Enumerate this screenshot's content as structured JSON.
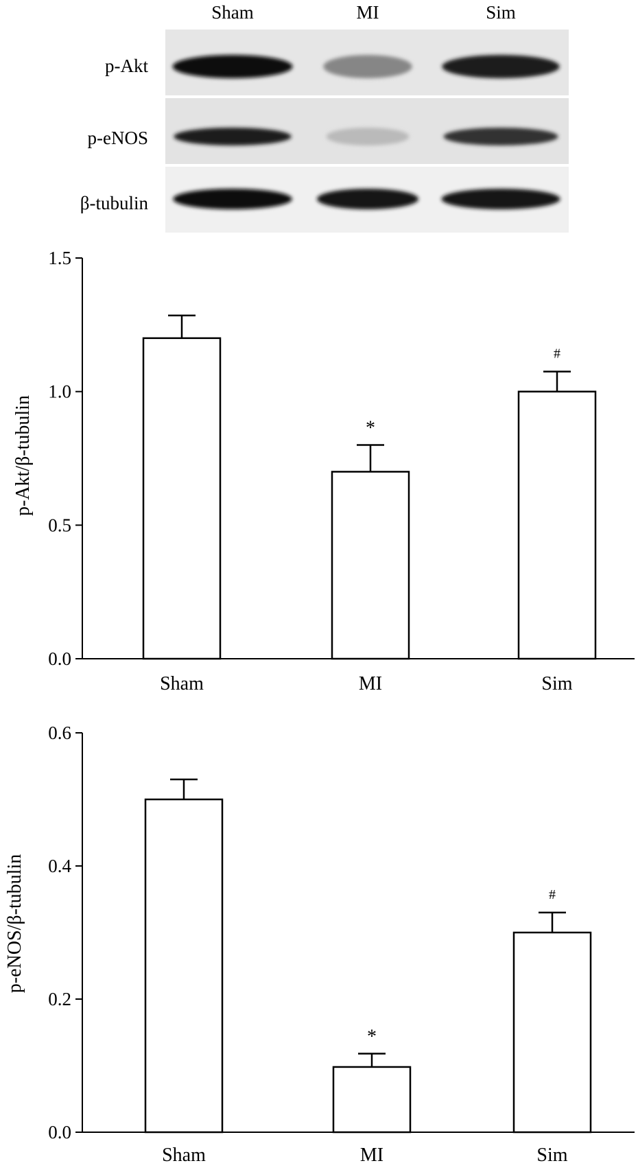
{
  "blot": {
    "lanes": [
      "Sham",
      "MI",
      "Sim"
    ],
    "rows": [
      {
        "label": "p-Akt",
        "intensity": [
          1.0,
          0.45,
          0.92
        ]
      },
      {
        "label": "p-eNOS",
        "intensity": [
          0.92,
          0.22,
          0.82
        ]
      },
      {
        "label": "β-tubulin",
        "intensity": [
          0.97,
          0.95,
          0.96
        ]
      }
    ]
  },
  "chart_data": [
    {
      "type": "bar",
      "title": "",
      "xlabel": "",
      "ylabel": "p-Akt/β-tubulin",
      "categories": [
        "Sham",
        "MI",
        "Sim"
      ],
      "values": [
        1.2,
        0.7,
        1.0
      ],
      "errors": [
        0.085,
        0.1,
        0.075
      ],
      "annotations": [
        "",
        "*",
        "#"
      ],
      "ylim": [
        0.0,
        1.5
      ],
      "yticks": [
        0.0,
        0.5,
        1.0,
        1.5
      ],
      "ytick_labels": [
        "0.0",
        "0.5",
        "1.0",
        "1.5"
      ],
      "grid": false
    },
    {
      "type": "bar",
      "title": "",
      "xlabel": "",
      "ylabel": "p-eNOS/β-tubulin",
      "categories": [
        "Sham",
        "MI",
        "Sim"
      ],
      "values": [
        0.5,
        0.098,
        0.3
      ],
      "errors": [
        0.03,
        0.02,
        0.03
      ],
      "annotations": [
        "",
        "*",
        "#"
      ],
      "ylim": [
        0.0,
        0.6
      ],
      "yticks": [
        0.0,
        0.2,
        0.4,
        0.6
      ],
      "ytick_labels": [
        "0.0",
        "0.2",
        "0.4",
        "0.6"
      ],
      "grid": false
    }
  ]
}
